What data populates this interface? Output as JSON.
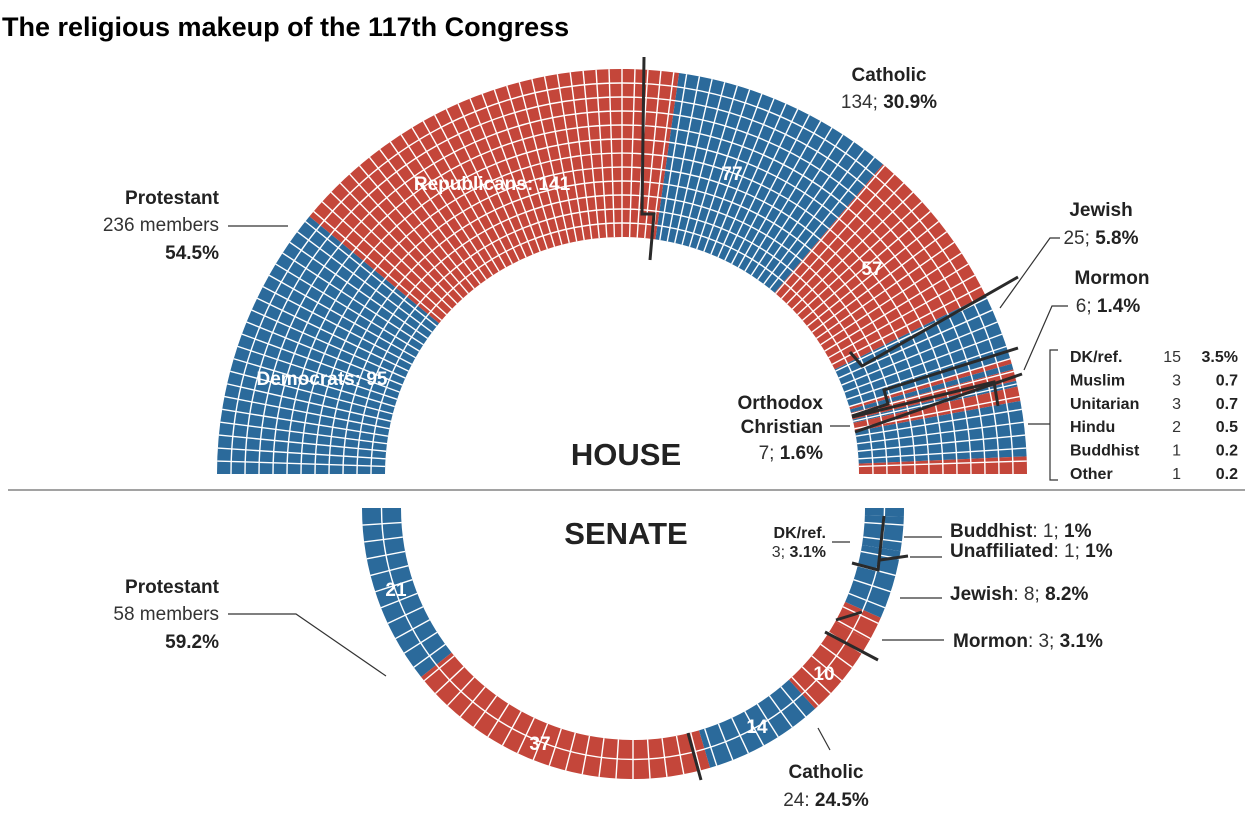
{
  "colors": {
    "democrat": "#2b6a9b",
    "republican": "#c4463a",
    "grid": "#ffffff",
    "boundary": "#2a2a2a"
  },
  "chart_data": {
    "type": "semicircle-parliament",
    "title": "The religious makeup of the 117th Congress",
    "house": {
      "label": "HOUSE",
      "party_labels": {
        "democrats": "Democrats: 95",
        "republicans": "Republicans: 141"
      },
      "segments": [
        {
          "religion": "Protestant",
          "party": "D",
          "value": 95
        },
        {
          "religion": "Protestant",
          "party": "R",
          "value": 141
        },
        {
          "religion": "Catholic",
          "party": "D",
          "value": 77
        },
        {
          "religion": "Catholic",
          "party": "R",
          "value": 57
        },
        {
          "religion": "Jewish",
          "party": "D",
          "value": 23
        },
        {
          "religion": "Jewish",
          "party": "R",
          "value": 2
        },
        {
          "religion": "Mormon",
          "party": "D",
          "value": 2
        },
        {
          "religion": "Mormon",
          "party": "R",
          "value": 4
        },
        {
          "religion": "Orthodox Christian",
          "party": "D",
          "value": 2
        },
        {
          "religion": "Orthodox Christian",
          "party": "R",
          "value": 5
        },
        {
          "religion": "Other small groups",
          "party": "D",
          "value": 19
        },
        {
          "religion": "Other small groups",
          "party": "R",
          "value": 6
        }
      ],
      "labels": {
        "protestant": {
          "name": "Protestant",
          "count": "236 members",
          "pct": "54.5%"
        },
        "catholic": {
          "name": "Catholic",
          "count": "134; ",
          "pct": "30.9%",
          "dem": "77",
          "rep": "57"
        },
        "jewish": {
          "name": "Jewish",
          "count": "25; ",
          "pct": "5.8%"
        },
        "mormon": {
          "name": "Mormon",
          "count": "6; ",
          "pct": "1.4%"
        },
        "orthodox": {
          "name1": "Orthodox",
          "name2": "Christian",
          "count": "7; ",
          "pct": "1.6%"
        }
      },
      "small_groups": [
        {
          "name": "DK/ref.",
          "count": "15",
          "pct": "3.5%"
        },
        {
          "name": "Muslim",
          "count": "3",
          "pct": "0.7"
        },
        {
          "name": "Unitarian",
          "count": "3",
          "pct": "0.7"
        },
        {
          "name": "Hindu",
          "count": "2",
          "pct": "0.5"
        },
        {
          "name": "Buddhist",
          "count": "1",
          "pct": "0.2"
        },
        {
          "name": "Other",
          "count": "1",
          "pct": "0.2"
        }
      ]
    },
    "senate": {
      "label": "SENATE",
      "segments": [
        {
          "religion": "Protestant",
          "party": "D",
          "value": 21
        },
        {
          "religion": "Protestant",
          "party": "R",
          "value": 37
        },
        {
          "religion": "Catholic",
          "party": "D",
          "value": 14
        },
        {
          "religion": "Catholic",
          "party": "R",
          "value": 10
        },
        {
          "religion": "Mormon",
          "party": "R",
          "value": 3
        },
        {
          "religion": "Jewish",
          "party": "D",
          "value": 8
        },
        {
          "religion": "DK/ref.",
          "party": "D",
          "value": 3
        },
        {
          "religion": "Unaffiliated",
          "party": "D",
          "value": 1
        },
        {
          "religion": "Buddhist",
          "party": "D",
          "value": 1
        }
      ],
      "labels": {
        "protestant": {
          "name": "Protestant",
          "count": "58 members",
          "pct": "59.2%",
          "dem": "21",
          "rep": "37"
        },
        "catholic": {
          "name": "Catholic",
          "count": "24: ",
          "pct": "24.5%",
          "dem": "14",
          "rep": "10"
        },
        "buddhist": {
          "name": "Buddhist",
          "count": ": 1; ",
          "pct": "1%"
        },
        "unaffiliated": {
          "name": "Unaffiliated",
          "count": ": 1; ",
          "pct": "1%"
        },
        "jewish": {
          "name": "Jewish",
          "count": ": 8; ",
          "pct": "8.2%"
        },
        "mormon": {
          "name": "Mormon",
          "count": ": 3; ",
          "pct": "3.1%"
        },
        "dkref": {
          "name": "DK/ref.",
          "count": "3; ",
          "pct": "3.1%"
        }
      }
    }
  }
}
